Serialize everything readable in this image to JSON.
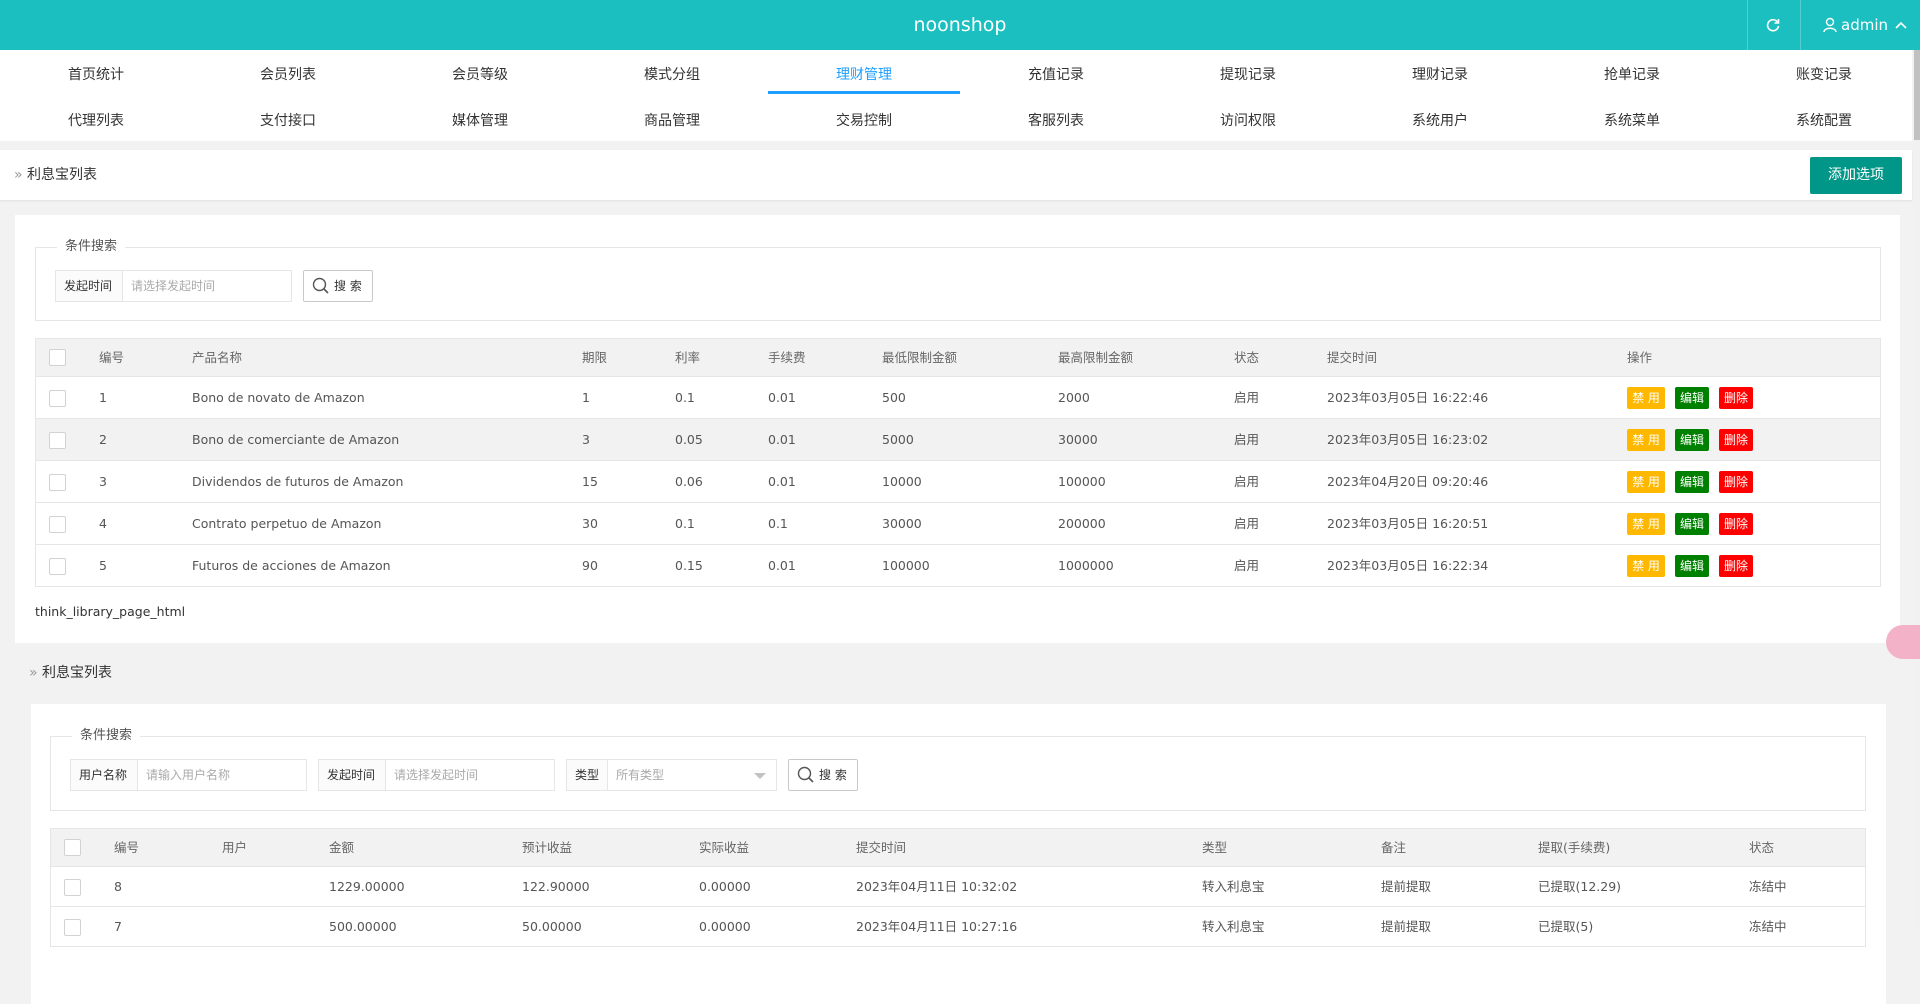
{
  "header": {
    "title": "noonshop",
    "user": "admin"
  },
  "nav": {
    "rows": [
      [
        "首页统计",
        "会员列表",
        "会员等级",
        "模式分组",
        "理财管理",
        "充值记录",
        "提现记录",
        "理财记录",
        "抢单记录",
        "账变记录"
      ],
      [
        "代理列表",
        "支付接口",
        "媒体管理",
        "商品管理",
        "交易控制",
        "客服列表",
        "访问权限",
        "系统用户",
        "系统菜单",
        "系统配置"
      ]
    ]
  },
  "section1": {
    "breadcrumb": "利息宝列表",
    "add_button": "添加选项",
    "search": {
      "legend": "条件搜索",
      "fields": [
        {
          "label": "发起时间",
          "placeholder": "请选择发起时间"
        }
      ],
      "button": "搜 索"
    },
    "table": {
      "columns": [
        "编号",
        "产品名称",
        "期限",
        "利率",
        "手续费",
        "最低限制金额",
        "最高限制金额",
        "状态",
        "提交时间",
        "操作"
      ],
      "rows": [
        [
          "1",
          "Bono de novato de Amazon",
          "1",
          "0.1",
          "0.01",
          "500",
          "2000",
          "启用",
          "2023年03月05日 16:22:46"
        ],
        [
          "2",
          "Bono de comerciante de Amazon",
          "3",
          "0.05",
          "0.01",
          "5000",
          "30000",
          "启用",
          "2023年03月05日 16:23:02"
        ],
        [
          "3",
          "Dividendos de futuros de Amazon",
          "15",
          "0.06",
          "0.01",
          "10000",
          "100000",
          "启用",
          "2023年04月20日 09:20:46"
        ],
        [
          "4",
          "Contrato perpetuo de Amazon",
          "30",
          "0.1",
          "0.1",
          "30000",
          "200000",
          "启用",
          "2023年03月05日 16:20:51"
        ],
        [
          "5",
          "Futuros de acciones de Amazon",
          "90",
          "0.15",
          "0.01",
          "100000",
          "1000000",
          "启用",
          "2023年03月05日 16:22:34"
        ]
      ],
      "actions": [
        "禁 用",
        "编辑",
        "删除"
      ]
    },
    "pager": "think_library_page_html"
  },
  "section2": {
    "breadcrumb": "利息宝列表",
    "search": {
      "legend": "条件搜索",
      "fields": [
        {
          "label": "用户名称",
          "placeholder": "请输入用户名称"
        },
        {
          "label": "发起时间",
          "placeholder": "请选择发起时间"
        },
        {
          "label": "类型",
          "placeholder": "所有类型"
        }
      ],
      "button": "搜 索"
    },
    "table": {
      "columns": [
        "编号",
        "用户",
        "金额",
        "预计收益",
        "实际收益",
        "提交时间",
        "类型",
        "备注",
        "提取(手续费)",
        "状态"
      ],
      "rows": [
        [
          "8",
          null,
          "1229.00000",
          "122.90000",
          "0.00000",
          "2023年04月11日 10:32:02",
          "转入利息宝",
          "提前提取",
          "已提取(12.29)",
          "冻结中"
        ],
        [
          "7",
          null,
          "500.00000",
          "50.00000",
          "0.00000",
          "2023年04月11日 10:27:16",
          "转入利息宝",
          "提前提取",
          "已提取(5)",
          "冻结中"
        ]
      ]
    }
  }
}
